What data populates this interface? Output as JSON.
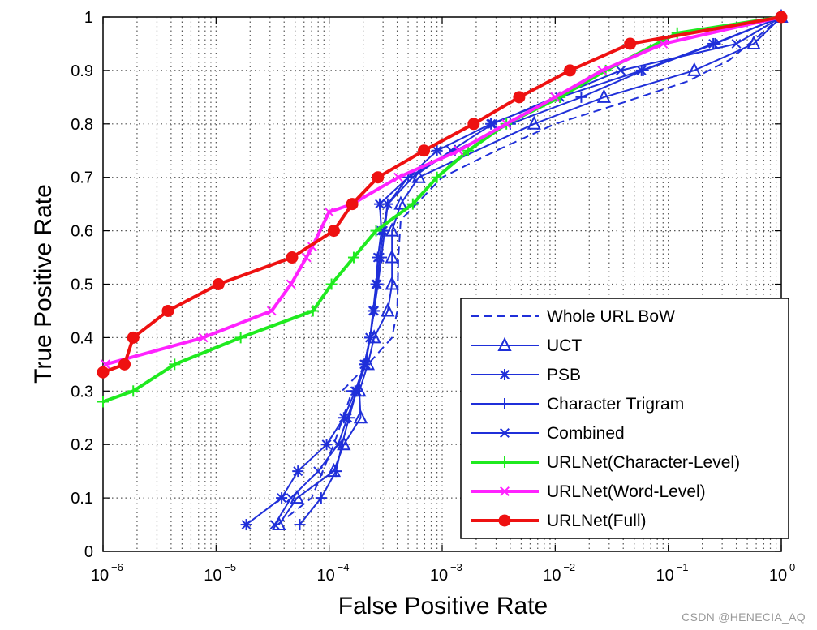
{
  "chart_data": {
    "type": "line",
    "title": "",
    "xlabel": "False Positive Rate",
    "ylabel": "True Positive Rate",
    "xscale": "log",
    "xlim": [
      1e-06,
      1
    ],
    "ylim": [
      0,
      1
    ],
    "grid": true,
    "legend_position": "bottom-right",
    "x_ticks": [
      {
        "value": 1e-06,
        "base": "10",
        "exp": "−6"
      },
      {
        "value": 1e-05,
        "base": "10",
        "exp": "−5"
      },
      {
        "value": 0.0001,
        "base": "10",
        "exp": "−4"
      },
      {
        "value": 0.001,
        "base": "10",
        "exp": "−3"
      },
      {
        "value": 0.01,
        "base": "10",
        "exp": "−2"
      },
      {
        "value": 0.1,
        "base": "10",
        "exp": "−1"
      },
      {
        "value": 1,
        "base": "10",
        "exp": "0"
      }
    ],
    "y_ticks": [
      {
        "value": 0,
        "label": "0"
      },
      {
        "value": 0.1,
        "label": "0.1"
      },
      {
        "value": 0.2,
        "label": "0.2"
      },
      {
        "value": 0.3,
        "label": "0.3"
      },
      {
        "value": 0.4,
        "label": "0.4"
      },
      {
        "value": 0.5,
        "label": "0.5"
      },
      {
        "value": 0.6,
        "label": "0.6"
      },
      {
        "value": 0.7,
        "label": "0.7"
      },
      {
        "value": 0.8,
        "label": "0.8"
      },
      {
        "value": 0.9,
        "label": "0.9"
      },
      {
        "value": 1,
        "label": "1"
      }
    ],
    "series": [
      {
        "name": "Whole URL BoW",
        "color": "#1f2fd9",
        "dash": true,
        "marker": "none",
        "width": 2,
        "points": [
          [
            3.5e-05,
            0.05
          ],
          [
            7e-05,
            0.1
          ],
          [
            0.00011,
            0.2
          ],
          [
            0.00016,
            0.3
          ],
          [
            0.00013,
            0.3
          ],
          [
            0.00022,
            0.35
          ],
          [
            0.00036,
            0.4
          ],
          [
            0.0004,
            0.45
          ],
          [
            0.00041,
            0.55
          ],
          [
            0.00043,
            0.62
          ],
          [
            0.001,
            0.7
          ],
          [
            0.003,
            0.75
          ],
          [
            0.01,
            0.8
          ],
          [
            0.04,
            0.84
          ],
          [
            0.15,
            0.88
          ],
          [
            0.35,
            0.92
          ],
          [
            1,
            1
          ]
        ]
      },
      {
        "name": "UCT",
        "color": "#1f2fd9",
        "dash": false,
        "marker": "triangle",
        "width": 2,
        "points": [
          [
            3.6e-05,
            0.05
          ],
          [
            5.2e-05,
            0.1
          ],
          [
            0.00011,
            0.15
          ],
          [
            0.000135,
            0.2
          ],
          [
            0.00019,
            0.25
          ],
          [
            0.000185,
            0.3
          ],
          [
            0.00022,
            0.35
          ],
          [
            0.00025,
            0.4
          ],
          [
            0.00033,
            0.45
          ],
          [
            0.00036,
            0.5
          ],
          [
            0.00036,
            0.55
          ],
          [
            0.00036,
            0.6
          ],
          [
            0.00043,
            0.65
          ],
          [
            0.00062,
            0.7
          ],
          [
            0.0065,
            0.8
          ],
          [
            0.027,
            0.85
          ],
          [
            0.17,
            0.9
          ],
          [
            0.57,
            0.95
          ],
          [
            1,
            1
          ]
        ]
      },
      {
        "name": "PSB",
        "color": "#1f2fd9",
        "dash": false,
        "marker": "asterisk",
        "width": 2,
        "points": [
          [
            1.85e-05,
            0.05
          ],
          [
            3.8e-05,
            0.1
          ],
          [
            5.3e-05,
            0.15
          ],
          [
            9.5e-05,
            0.2
          ],
          [
            0.000135,
            0.25
          ],
          [
            0.00017,
            0.3
          ],
          [
            0.000205,
            0.35
          ],
          [
            0.00023,
            0.4
          ],
          [
            0.000245,
            0.45
          ],
          [
            0.00026,
            0.5
          ],
          [
            0.00027,
            0.55
          ],
          [
            0.00029,
            0.6
          ],
          [
            0.00028,
            0.65
          ],
          [
            0.0009,
            0.75
          ],
          [
            0.0027,
            0.8
          ],
          [
            0.011,
            0.85
          ],
          [
            0.058,
            0.9
          ],
          [
            0.25,
            0.95
          ],
          [
            1,
            1
          ]
        ]
      },
      {
        "name": "Character Trigram",
        "color": "#1f2fd9",
        "dash": false,
        "marker": "plus",
        "width": 2,
        "points": [
          [
            5.5e-05,
            0.05
          ],
          [
            8.5e-05,
            0.1
          ],
          [
            0.000115,
            0.15
          ],
          [
            0.00013,
            0.2
          ],
          [
            0.00015,
            0.25
          ],
          [
            0.000175,
            0.3
          ],
          [
            0.000205,
            0.35
          ],
          [
            0.00023,
            0.4
          ],
          [
            0.00025,
            0.45
          ],
          [
            0.00027,
            0.5
          ],
          [
            0.00029,
            0.55
          ],
          [
            0.00031,
            0.6
          ],
          [
            0.00033,
            0.65
          ],
          [
            0.0005,
            0.7
          ],
          [
            0.0013,
            0.75
          ],
          [
            0.004,
            0.8
          ],
          [
            0.017,
            0.85
          ],
          [
            0.06,
            0.9
          ],
          [
            0.26,
            0.95
          ],
          [
            1,
            1
          ]
        ]
      },
      {
        "name": "Combined",
        "color": "#1f2fd9",
        "dash": false,
        "marker": "x",
        "width": 2,
        "points": [
          [
            3.3e-05,
            0.05
          ],
          [
            4.6e-05,
            0.1
          ],
          [
            8e-05,
            0.15
          ],
          [
            0.00012,
            0.2
          ],
          [
            0.000145,
            0.25
          ],
          [
            0.000175,
            0.3
          ],
          [
            0.00021,
            0.35
          ],
          [
            0.00023,
            0.4
          ],
          [
            0.00025,
            0.45
          ],
          [
            0.000265,
            0.5
          ],
          [
            0.00028,
            0.55
          ],
          [
            0.0003,
            0.6
          ],
          [
            0.00033,
            0.65
          ],
          [
            0.00055,
            0.7
          ],
          [
            0.0012,
            0.75
          ],
          [
            0.0028,
            0.8
          ],
          [
            0.01,
            0.85
          ],
          [
            0.038,
            0.9
          ],
          [
            0.4,
            0.95
          ],
          [
            1,
            1
          ]
        ]
      },
      {
        "name": "URLNet(Character-Level)",
        "color": "#1fea1f",
        "dash": false,
        "marker": "plus",
        "width": 4,
        "points": [
          [
            1e-06,
            0.28
          ],
          [
            1.85e-06,
            0.3
          ],
          [
            4.3e-06,
            0.35
          ],
          [
            1.65e-05,
            0.4
          ],
          [
            7.2e-05,
            0.45
          ],
          [
            0.000105,
            0.5
          ],
          [
            0.000165,
            0.55
          ],
          [
            0.00026,
            0.6
          ],
          [
            0.00055,
            0.65
          ],
          [
            0.0009,
            0.7
          ],
          [
            0.0017,
            0.75
          ],
          [
            0.0037,
            0.8
          ],
          [
            0.011,
            0.85
          ],
          [
            0.028,
            0.9
          ],
          [
            0.12,
            0.97
          ],
          [
            1,
            1
          ]
        ]
      },
      {
        "name": "URLNet(Word-Level)",
        "color": "#ff22ff",
        "dash": false,
        "marker": "x",
        "width": 4,
        "points": [
          [
            1.05e-06,
            0.35
          ],
          [
            7.7e-06,
            0.4
          ],
          [
            3.1e-05,
            0.45
          ],
          [
            4.6e-05,
            0.5
          ],
          [
            6.3e-05,
            0.55
          ],
          [
            7.1e-05,
            0.57
          ],
          [
            0.0001,
            0.635
          ],
          [
            0.00016,
            0.65
          ],
          [
            0.00041,
            0.7
          ],
          [
            0.0014,
            0.75
          ],
          [
            0.0037,
            0.8
          ],
          [
            0.01,
            0.85
          ],
          [
            0.026,
            0.9
          ],
          [
            0.09,
            0.95
          ],
          [
            1,
            1
          ]
        ]
      },
      {
        "name": "URLNet(Full)",
        "color": "#ee1111",
        "dash": false,
        "marker": "circle",
        "width": 4,
        "points": [
          [
            1e-06,
            0.335
          ],
          [
            1.55e-06,
            0.35
          ],
          [
            1.85e-06,
            0.4
          ],
          [
            3.75e-06,
            0.45
          ],
          [
            1.05e-05,
            0.5
          ],
          [
            4.7e-05,
            0.55
          ],
          [
            0.00011,
            0.6
          ],
          [
            0.00016,
            0.65
          ],
          [
            0.00027,
            0.7
          ],
          [
            0.00069,
            0.75
          ],
          [
            0.0019,
            0.8
          ],
          [
            0.0048,
            0.85
          ],
          [
            0.0135,
            0.9
          ],
          [
            0.046,
            0.95
          ],
          [
            1,
            1
          ]
        ]
      }
    ]
  },
  "watermark": "CSDN @HENECIA_AQ"
}
